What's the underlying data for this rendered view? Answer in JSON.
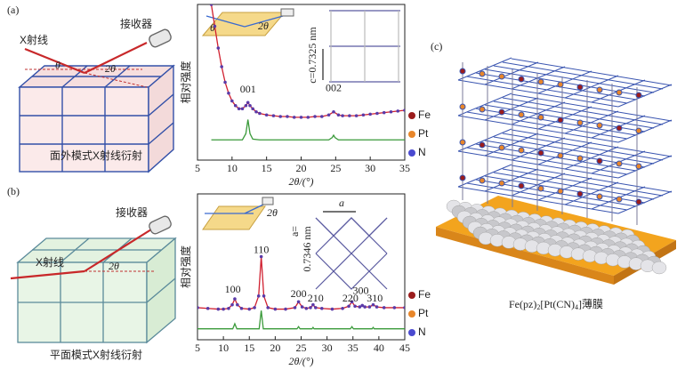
{
  "labels": {
    "panel_a": "(a)",
    "panel_b": "(b)",
    "panel_c": "(c)"
  },
  "schematic_a": {
    "xray": "X射线",
    "receiver": "接收器",
    "theta": "θ",
    "two_theta": "2θ",
    "caption": "面外模式X射线衍射"
  },
  "schematic_b": {
    "xray": "X射线",
    "receiver": "接收器",
    "two_theta": "2θ",
    "caption": "平面模式X射线衍射"
  },
  "structure": {
    "caption": [
      "Fe(pz)",
      "2",
      "[Pt(CN)",
      "4",
      "]薄膜"
    ]
  },
  "chart_data": [
    {
      "type": "line",
      "xlabel": "2θ/(°)",
      "ylabel": "相对强度",
      "xlim": [
        5,
        35
      ],
      "xticks": [
        5,
        10,
        15,
        20,
        25,
        30,
        35
      ],
      "ylim": [
        0,
        100
      ],
      "inset_texts": {
        "theta": "θ",
        "two_theta": "2θ",
        "spacing": "c=0.7325 nm"
      },
      "annotations": [
        {
          "text": "001",
          "x": 12.3,
          "y": 45
        },
        {
          "text": "002",
          "x": 24.7,
          "y": 46
        }
      ],
      "legend_items": [
        {
          "name": "Fe",
          "color": "#9b1c1c"
        },
        {
          "name": "Pt",
          "color": "#e8862a"
        },
        {
          "name": "N",
          "color": "#4a4ad0"
        }
      ],
      "series": [
        {
          "color": "#d02030",
          "marker_color": "#5a3aa8",
          "x": [
            7,
            7.5,
            8,
            8.5,
            9,
            9.5,
            10,
            10.5,
            11,
            11.5,
            12,
            12.3,
            12.6,
            13,
            13.5,
            14,
            15,
            16,
            17,
            18,
            19,
            20,
            21,
            22,
            23,
            24,
            24.7,
            25.4,
            26,
            27,
            28,
            29,
            30,
            31,
            32,
            33,
            34,
            35
          ],
          "values": [
            100,
            86,
            72,
            60,
            50,
            43,
            38,
            35,
            33,
            33,
            35,
            37,
            35,
            33,
            31,
            30,
            29,
            28.5,
            28,
            28,
            27.5,
            27.5,
            27.5,
            28,
            28,
            29,
            31,
            29,
            28.5,
            28.5,
            28.5,
            29,
            29.5,
            30,
            30.5,
            31,
            31.5,
            32
          ]
        },
        {
          "color": "#3a9a3a",
          "x": [
            7,
            11.5,
            12,
            12.3,
            12.6,
            13,
            14,
            24,
            24.5,
            24.7,
            24.9,
            25.4,
            35
          ],
          "values": [
            13,
            13,
            17,
            26,
            17,
            13.5,
            13,
            13,
            14.5,
            16,
            14.5,
            13,
            13
          ]
        }
      ]
    },
    {
      "type": "line",
      "xlabel": "2θ/(°)",
      "ylabel": "相对强度",
      "xlim": [
        5,
        45
      ],
      "xticks": [
        5,
        10,
        15,
        20,
        25,
        30,
        35,
        40,
        45
      ],
      "ylim": [
        0,
        100
      ],
      "inset_texts": {
        "two_theta": "2θ",
        "a": "a",
        "a_eq": "a=",
        "spacing": "0.7346 nm"
      },
      "annotations": [
        {
          "text": "110",
          "x": 17.3,
          "y": 61
        },
        {
          "text": "100",
          "x": 11.8,
          "y": 34
        },
        {
          "text": "200",
          "x": 24.5,
          "y": 31
        },
        {
          "text": "210",
          "x": 27.8,
          "y": 28
        },
        {
          "text": "300",
          "x": 36.5,
          "y": 33
        },
        {
          "text": "220",
          "x": 34.5,
          "y": 28
        },
        {
          "text": "310",
          "x": 39.2,
          "y": 28
        }
      ],
      "legend_items": [
        {
          "name": "Fe",
          "color": "#9b1c1c"
        },
        {
          "name": "Pt",
          "color": "#e8862a"
        },
        {
          "name": "N",
          "color": "#4a4ad0"
        }
      ],
      "series": [
        {
          "color": "#d02030",
          "marker_color": "#5a3aa8",
          "x": [
            5,
            7,
            9,
            10,
            11,
            11.7,
            12.2,
            12.7,
            13.5,
            15,
            16,
            16.8,
            17.3,
            17.8,
            18.6,
            20,
            22,
            23.8,
            24.5,
            25.2,
            26,
            26.8,
            27.3,
            27.8,
            29,
            31,
            33,
            34.2,
            34.8,
            35.4,
            36.3,
            36.8,
            37.3,
            38.2,
            38.9,
            39.6,
            41,
            43,
            45
          ],
          "values": [
            22,
            21.5,
            21,
            21,
            21.5,
            24,
            28,
            24,
            21.5,
            21,
            22,
            30,
            57,
            30,
            22,
            21,
            21,
            22,
            26,
            22.5,
            21.5,
            22,
            24,
            22,
            21.5,
            21,
            21.5,
            23,
            26,
            23,
            22.5,
            23.5,
            22.5,
            22.5,
            24,
            22.5,
            22,
            22,
            22
          ]
        },
        {
          "color": "#3a9a3a",
          "x": [
            5,
            11.8,
            12.2,
            12.6,
            16.9,
            17.3,
            17.7,
            24.2,
            24.5,
            24.8,
            27.1,
            27.3,
            27.5,
            34.5,
            34.8,
            35.1,
            38.7,
            38.9,
            39.1,
            45
          ],
          "values": [
            7.5,
            7.5,
            11,
            7.5,
            7.5,
            20,
            7.5,
            7.5,
            9,
            7.5,
            7.5,
            8.5,
            7.5,
            7.5,
            9,
            7.5,
            7.5,
            8.5,
            7.5,
            7.5
          ]
        }
      ]
    }
  ]
}
